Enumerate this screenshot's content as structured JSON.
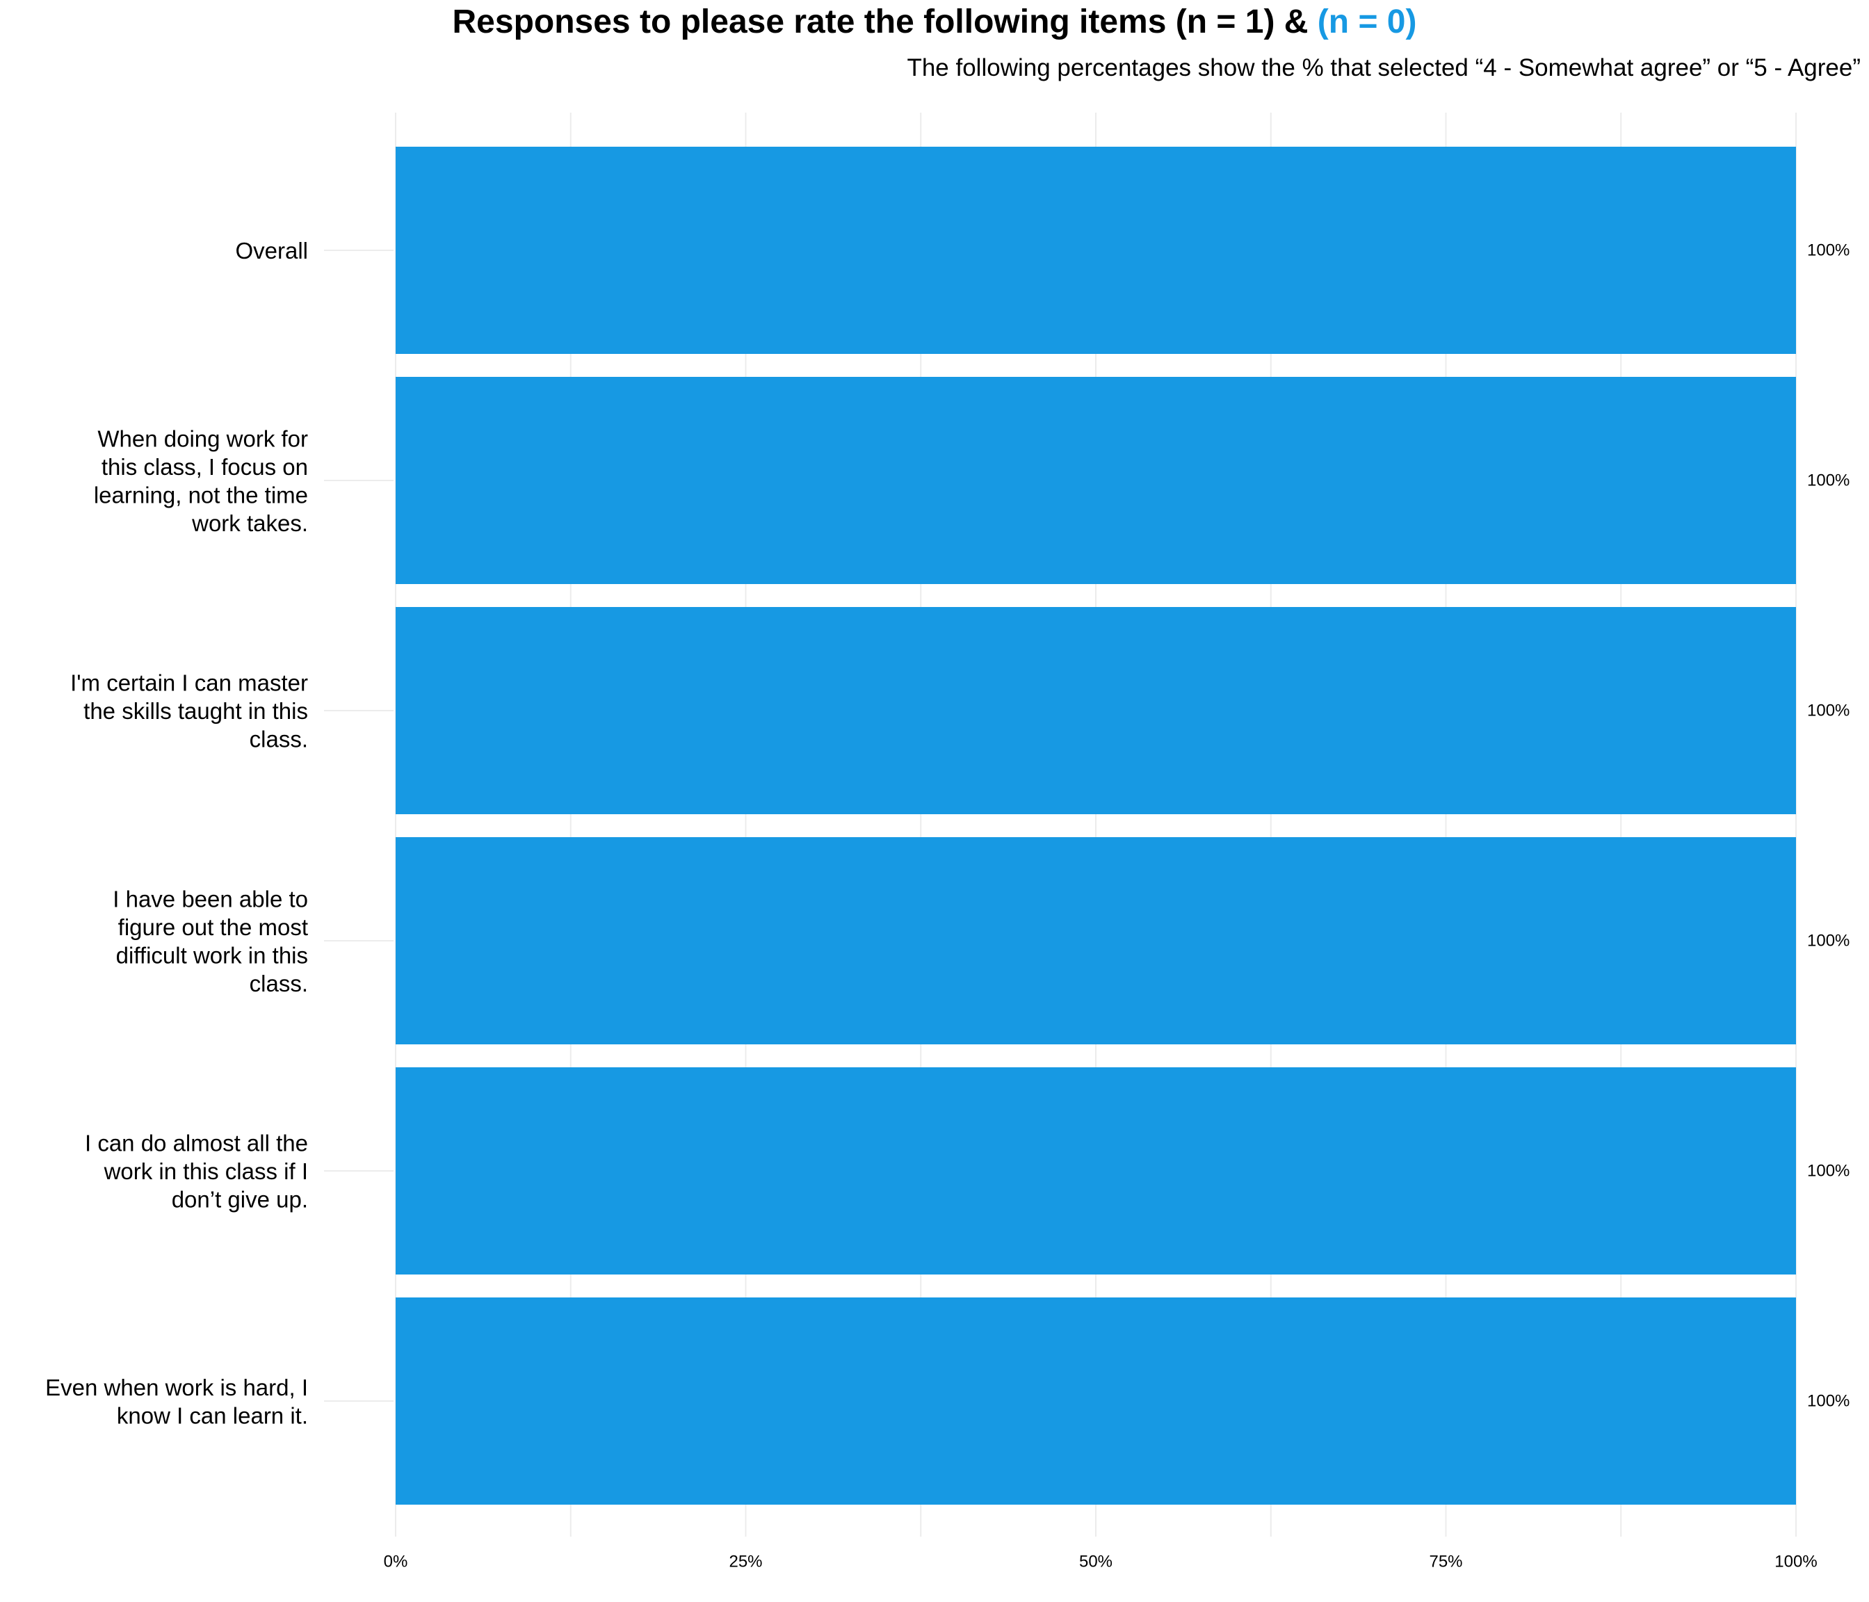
{
  "header": {
    "title_main": "Responses to please rate the following items (n = 1) &",
    "title_accent": "(n = 0)",
    "subtitle": "The following percentages show the % that selected “4 - Somewhat agree” or “5 - Agree”"
  },
  "chart_data": {
    "type": "bar",
    "orientation": "horizontal",
    "categories": [
      "Overall",
      "When doing work for this class, I focus on learning, not the time work takes.",
      "I'm certain I can master the skills taught in this class.",
      "I have been able to figure out the most difficult work in this class.",
      "I can do almost all the work in this class if I don’t give up.",
      "Even when work is hard, I know I can learn it."
    ],
    "category_lines": [
      [
        "Overall"
      ],
      [
        "When doing work for",
        "this class, I focus on",
        "learning, not the time",
        "work takes."
      ],
      [
        "I'm certain I can master",
        "the skills taught in this",
        "class."
      ],
      [
        "I have been able to",
        "figure out the most",
        "difficult work in this",
        "class."
      ],
      [
        "I can do almost all the",
        "work in this class if I",
        "don’t give up."
      ],
      [
        "Even when work is hard, I",
        "know I can learn it."
      ]
    ],
    "values": [
      100,
      100,
      100,
      100,
      100,
      100
    ],
    "value_labels": [
      "100%",
      "100%",
      "100%",
      "100%",
      "100%",
      "100%"
    ],
    "xlim": [
      0,
      100
    ],
    "xticks": [
      0,
      25,
      50,
      75,
      100
    ],
    "xtick_labels": [
      "0%",
      "25%",
      "50%",
      "75%",
      "100%"
    ],
    "grid": true,
    "colors": {
      "bar": "#1799e3",
      "grid": "#ececec",
      "accent": "#1799e3"
    }
  }
}
